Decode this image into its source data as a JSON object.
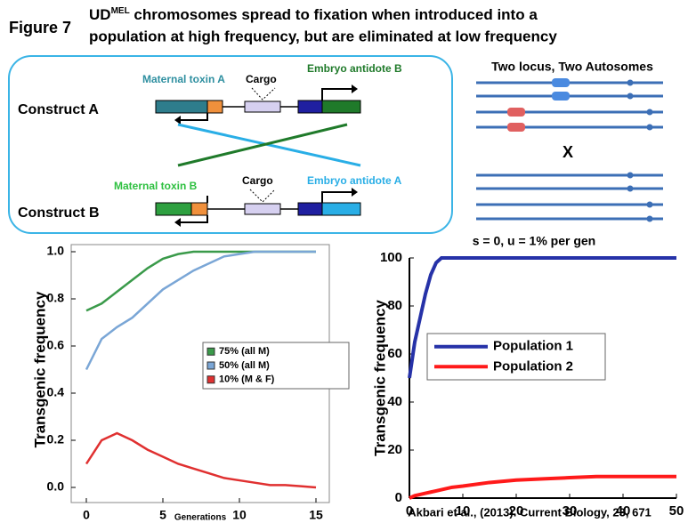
{
  "header": {
    "figure_label": "Figure 7",
    "title_prefix": "UD",
    "title_superscript": "MEL",
    "title_line1_rest": " chromosomes spread to fixation when introduced into a",
    "title_line2": "population at high frequency, but are eliminated at low frequency"
  },
  "diagram": {
    "construct_a": "Construct A",
    "construct_b": "Construct B",
    "maternal_toxin_a": "Maternal toxin A",
    "cargo_a": "Cargo",
    "embryo_antidote_b": "Embryo antidote B",
    "maternal_toxin_b": "Maternal toxin B",
    "cargo_b": "Cargo",
    "embryo_antidote_a": "Embryo antidote A"
  },
  "chromosomes": {
    "title": "Two locus, Two Autosomes",
    "cross": "X"
  },
  "citation": "Akbari et al., (2013). Current Biology, 23, 671",
  "chart_data": [
    {
      "type": "line",
      "ylabel": "Transgenic frequency",
      "xlabel": "Generations",
      "x": [
        0,
        1,
        2,
        3,
        4,
        5,
        6,
        7,
        8,
        9,
        10,
        11,
        12,
        13,
        14,
        15
      ],
      "xlim": [
        0,
        15
      ],
      "xticks": [
        0,
        5,
        10,
        15
      ],
      "ylim": [
        0,
        1
      ],
      "yticks": [
        {
          "value": 0,
          "label": "0.0"
        },
        {
          "value": 0.2,
          "label": "0.2"
        },
        {
          "value": 0.4,
          "label": "0.4"
        },
        {
          "value": 0.6,
          "label": "0.6"
        },
        {
          "value": 0.8,
          "label": "0.8"
        },
        {
          "value": 1,
          "label": "1.0"
        }
      ],
      "series": [
        {
          "name": "75% (all M)",
          "color": "#3a9a4a",
          "values": [
            0.75,
            0.78,
            0.83,
            0.88,
            0.93,
            0.97,
            0.99,
            1,
            1,
            1,
            1,
            1,
            1,
            1,
            1,
            1
          ]
        },
        {
          "name": "50% (all M)",
          "color": "#7aa6d6",
          "values": [
            0.5,
            0.63,
            0.68,
            0.72,
            0.78,
            0.84,
            0.88,
            0.92,
            0.95,
            0.98,
            0.99,
            1,
            1,
            1,
            1,
            1
          ]
        },
        {
          "name": "10% (M & F)",
          "color": "#e03030",
          "values": [
            0.1,
            0.2,
            0.23,
            0.2,
            0.16,
            0.13,
            0.1,
            0.08,
            0.06,
            0.04,
            0.03,
            0.02,
            0.01,
            0.01,
            0.005,
            0
          ]
        }
      ]
    },
    {
      "type": "line",
      "title": "s = 0, u = 1% per gen",
      "ylabel": "Transgenic frequency",
      "x": [
        0,
        1,
        2,
        3,
        4,
        5,
        6,
        8,
        10,
        15,
        20,
        25,
        30,
        35,
        40,
        45,
        50
      ],
      "xlim": [
        0,
        50
      ],
      "xticks": [
        0,
        10,
        20,
        30,
        40,
        50
      ],
      "ylim": [
        0,
        100
      ],
      "yticks": [
        0,
        20,
        40,
        60,
        80,
        100
      ],
      "series": [
        {
          "name": "Population 1",
          "color": "#2632a8",
          "values": [
            50,
            65,
            75,
            85,
            93,
            98,
            100,
            100,
            100,
            100,
            100,
            100,
            100,
            100,
            100,
            100,
            100
          ]
        },
        {
          "name": "Population 2",
          "color": "#ff1a1a",
          "values": [
            0,
            1,
            1.5,
            2,
            2.5,
            3,
            3.5,
            4.5,
            5,
            6.5,
            7.5,
            8,
            8.5,
            9,
            9,
            9,
            9
          ]
        }
      ]
    }
  ]
}
